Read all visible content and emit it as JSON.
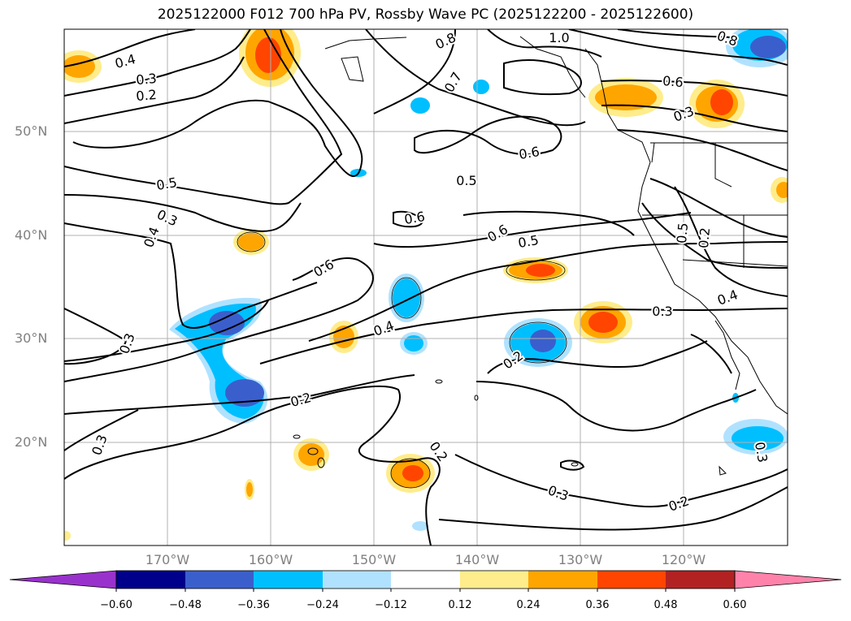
{
  "title": "2025122000 F012 700 hPa PV, Rossby Wave PC (2025122200 - 2025122600)",
  "colors": {
    "neg_060": "#9932CC",
    "neg_048": "#00008B",
    "neg_036": "#3A5FCD",
    "neg_024": "#00BFFF",
    "neg_012": "#B0E2FF",
    "zero": "#FFFFFF",
    "pos_012": "#FFEC8B",
    "pos_024": "#FFA500",
    "pos_036": "#FF4500",
    "pos_048": "#B22222",
    "pos_060": "#FF82AB"
  },
  "lat_labels": [
    "50°N",
    "40°N",
    "30°N",
    "20°N"
  ],
  "lon_labels": [
    "170°W",
    "160°W",
    "150°W",
    "140°W",
    "130°W",
    "120°W"
  ],
  "colorbar": {
    "ticks": [
      "−0.60",
      "−0.48",
      "−0.36",
      "−0.24",
      "−0.12",
      "0.12",
      "0.24",
      "0.36",
      "0.48",
      "0.60"
    ],
    "colors": [
      "#9932CC",
      "#00008B",
      "#3A5FCD",
      "#00BFFF",
      "#B0E2FF",
      "#FFFFFF",
      "#FFEC8B",
      "#FFA500",
      "#FF4500",
      "#B22222",
      "#FF82AB"
    ]
  },
  "contour_labels": [
    "0.4",
    "0.3",
    "0.2",
    "0.8",
    "1.0",
    "0.7",
    "0.6",
    "0.3",
    "0.6",
    "0.5",
    "0.3",
    "0.4",
    "0.5",
    "0.6",
    "0.6",
    "0.5",
    "0.6",
    "0.3",
    "0.2",
    "0.4",
    "0.3",
    "0.4",
    "0.5",
    "0.2",
    "0.2",
    "0.2",
    "0.3",
    "0.2",
    "0.3",
    "0.3",
    "0.8"
  ]
}
